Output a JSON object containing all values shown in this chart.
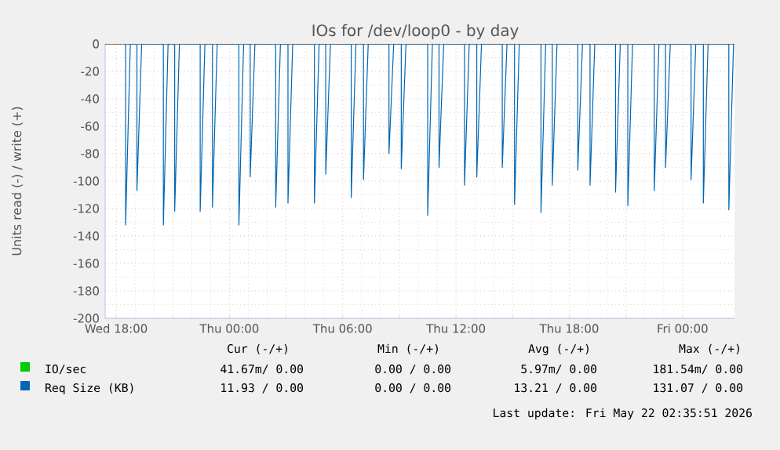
{
  "chart_data": {
    "type": "line",
    "title": "IOs for /dev/loop0 - by day",
    "ylabel": "Units read (-) / write (+)",
    "xlim": [
      "2026-05-20T17:25",
      "2026-05-22T02:45"
    ],
    "ylim": [
      -200,
      0
    ],
    "xticks": [
      {
        "value": "2026-05-20T18:00",
        "label": "Wed 18:00"
      },
      {
        "value": "2026-05-20T21:00",
        "label": null
      },
      {
        "value": "2026-05-21T00:00",
        "label": "Thu 00:00"
      },
      {
        "value": "2026-05-21T03:00",
        "label": null
      },
      {
        "value": "2026-05-21T06:00",
        "label": "Thu 06:00"
      },
      {
        "value": "2026-05-21T09:00",
        "label": null
      },
      {
        "value": "2026-05-21T12:00",
        "label": "Thu 12:00"
      },
      {
        "value": "2026-05-21T15:00",
        "label": null
      },
      {
        "value": "2026-05-21T18:00",
        "label": "Thu 18:00"
      },
      {
        "value": "2026-05-21T21:00",
        "label": null
      },
      {
        "value": "2026-05-22T00:00",
        "label": "Fri 00:00"
      }
    ],
    "yticks": [
      0,
      -20,
      -40,
      -60,
      -80,
      -100,
      -120,
      -140,
      -160,
      -180,
      -200
    ],
    "grid": true,
    "legend": "bottom",
    "ref_lines": [
      {
        "axis": "y",
        "value": 0,
        "color": "#000000"
      }
    ],
    "series": [
      {
        "name": "IO/sec",
        "color": "#00cc00"
      },
      {
        "name": "Req Size (KB)",
        "color": "#0066b3",
        "x": [
          "2026-05-20T18:30",
          "2026-05-20T18:30",
          "2026-05-20T18:45",
          "2026-05-20T19:06",
          "2026-05-20T19:06",
          "2026-05-20T19:21",
          "2026-05-20T20:30",
          "2026-05-20T20:30",
          "2026-05-20T20:45",
          "2026-05-20T21:06",
          "2026-05-20T21:06",
          "2026-05-20T21:21",
          "2026-05-20T22:27",
          "2026-05-20T22:27",
          "2026-05-20T22:42",
          "2026-05-20T23:06",
          "2026-05-20T23:06",
          "2026-05-20T23:21",
          "2026-05-21T00:30",
          "2026-05-21T00:30",
          "2026-05-21T00:45",
          "2026-05-21T01:06",
          "2026-05-21T01:06",
          "2026-05-21T01:21",
          "2026-05-21T02:27",
          "2026-05-21T02:27",
          "2026-05-21T02:42",
          "2026-05-21T03:06",
          "2026-05-21T03:06",
          "2026-05-21T03:21",
          "2026-05-21T04:30",
          "2026-05-21T04:30",
          "2026-05-21T04:45",
          "2026-05-21T05:06",
          "2026-05-21T05:06",
          "2026-05-21T05:21",
          "2026-05-21T06:27",
          "2026-05-21T06:27",
          "2026-05-21T06:42",
          "2026-05-21T07:06",
          "2026-05-21T07:06",
          "2026-05-21T07:21",
          "2026-05-21T08:27",
          "2026-05-21T08:27",
          "2026-05-21T08:42",
          "2026-05-21T09:06",
          "2026-05-21T09:06",
          "2026-05-21T09:21",
          "2026-05-21T10:30",
          "2026-05-21T10:30",
          "2026-05-21T10:45",
          "2026-05-21T11:06",
          "2026-05-21T11:06",
          "2026-05-21T11:21",
          "2026-05-21T12:27",
          "2026-05-21T12:27",
          "2026-05-21T12:42",
          "2026-05-21T13:06",
          "2026-05-21T13:06",
          "2026-05-21T13:21",
          "2026-05-21T14:27",
          "2026-05-21T14:27",
          "2026-05-21T14:42",
          "2026-05-21T15:06",
          "2026-05-21T15:06",
          "2026-05-21T15:21",
          "2026-05-21T16:30",
          "2026-05-21T16:30",
          "2026-05-21T16:45",
          "2026-05-21T17:06",
          "2026-05-21T17:06",
          "2026-05-21T17:21",
          "2026-05-21T18:27",
          "2026-05-21T18:27",
          "2026-05-21T18:42",
          "2026-05-21T19:06",
          "2026-05-21T19:06",
          "2026-05-21T19:21",
          "2026-05-21T20:27",
          "2026-05-21T20:27",
          "2026-05-21T20:42",
          "2026-05-21T21:06",
          "2026-05-21T21:06",
          "2026-05-21T21:21",
          "2026-05-21T22:30",
          "2026-05-21T22:30",
          "2026-05-21T22:45",
          "2026-05-21T23:06",
          "2026-05-21T23:06",
          "2026-05-21T23:21",
          "2026-05-22T00:27",
          "2026-05-22T00:27",
          "2026-05-22T00:42",
          "2026-05-22T01:06",
          "2026-05-22T01:06",
          "2026-05-22T01:21",
          "2026-05-22T02:27",
          "2026-05-22T02:27",
          "2026-05-22T02:42"
        ],
        "values": [
          0,
          -132,
          0,
          0,
          -107,
          0,
          0,
          -132,
          0,
          0,
          -122,
          0,
          0,
          -122,
          0,
          0,
          -119,
          0,
          0,
          -132,
          0,
          0,
          -97,
          0,
          0,
          -119,
          0,
          0,
          -116,
          0,
          0,
          -116,
          0,
          0,
          -95,
          0,
          0,
          -112,
          0,
          0,
          -99,
          0,
          0,
          -80,
          0,
          0,
          -91,
          0,
          0,
          -125,
          0,
          0,
          -90,
          0,
          0,
          -103,
          0,
          0,
          -97,
          0,
          0,
          -90,
          0,
          0,
          -117,
          0,
          0,
          -123,
          0,
          0,
          -103,
          0,
          0,
          -92,
          0,
          0,
          -103,
          0,
          0,
          -108,
          0,
          0,
          -118,
          0,
          0,
          -107,
          0,
          0,
          -90,
          0,
          0,
          -99,
          0,
          0,
          -116,
          0,
          0,
          -121,
          0
        ]
      }
    ],
    "annotations": [
      "Cur (-/+)",
      "Min (-/+)",
      "Avg (-/+)",
      "Max (-/+)",
      "41.67m/ 0.00",
      "0.00 / 0.00",
      "5.97m/ 0.00",
      "181.54m/ 0.00",
      "11.93 / 0.00",
      "0.00 / 0.00",
      "13.21 / 0.00",
      "131.07 / 0.00",
      "Last update: Fri May 22 02:35:51 2026"
    ]
  }
}
